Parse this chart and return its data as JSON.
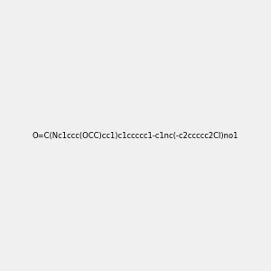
{
  "smiles": "O=C(Nc1ccc(OCC)cc1)c1ccccc1-c1nc(-c2ccccc2Cl)no1",
  "title": "",
  "bg_color": "#f0f0f0",
  "fig_width": 3.0,
  "fig_height": 3.0,
  "dpi": 100
}
